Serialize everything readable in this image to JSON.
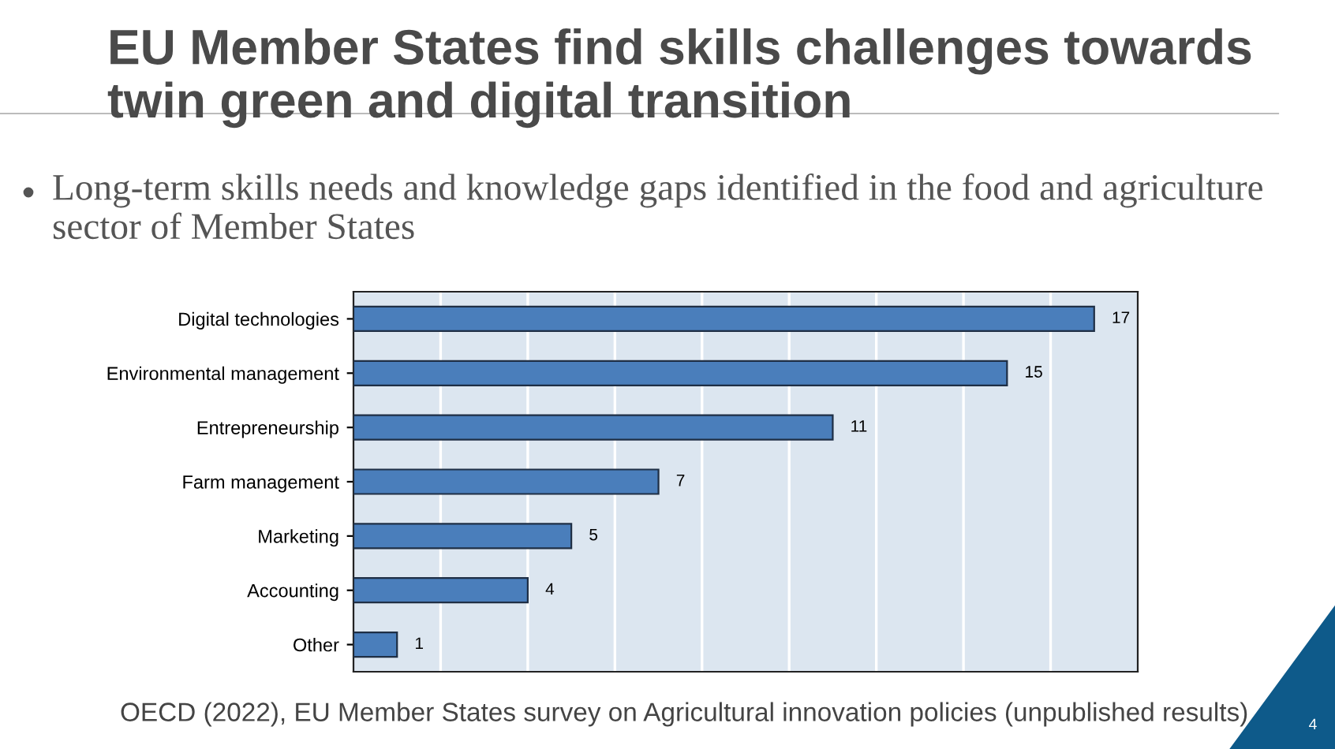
{
  "chart_data": {
    "type": "bar",
    "orientation": "horizontal",
    "title": "EU Member States find skills challenges towards twin green and digital transition",
    "subtitle": "Long-term skills needs and knowledge gaps identified in the food and agriculture sector of Member States",
    "categories": [
      "Digital technologies",
      "Environmental management",
      "Entrepreneurship",
      "Farm management",
      "Marketing",
      "Accounting",
      "Other"
    ],
    "values": [
      17,
      15,
      11,
      7,
      5,
      4,
      1
    ],
    "color": "#4a7ebb",
    "data_labels": true,
    "xlim": [
      0,
      18
    ],
    "xticks": [
      {
        "value": 2,
        "label": null
      },
      {
        "value": 4,
        "label": null
      },
      {
        "value": 6,
        "label": null
      },
      {
        "value": 8,
        "label": null
      },
      {
        "value": 10,
        "label": null
      },
      {
        "value": 12,
        "label": null
      },
      {
        "value": 14,
        "label": null
      },
      {
        "value": 16,
        "label": null
      }
    ],
    "tick_labels": "y",
    "grid": "x",
    "legend": false,
    "annotations": [
      "OECD (2022), EU Member States survey on Agricultural innovation policies (unpublished results)",
      "4"
    ]
  }
}
